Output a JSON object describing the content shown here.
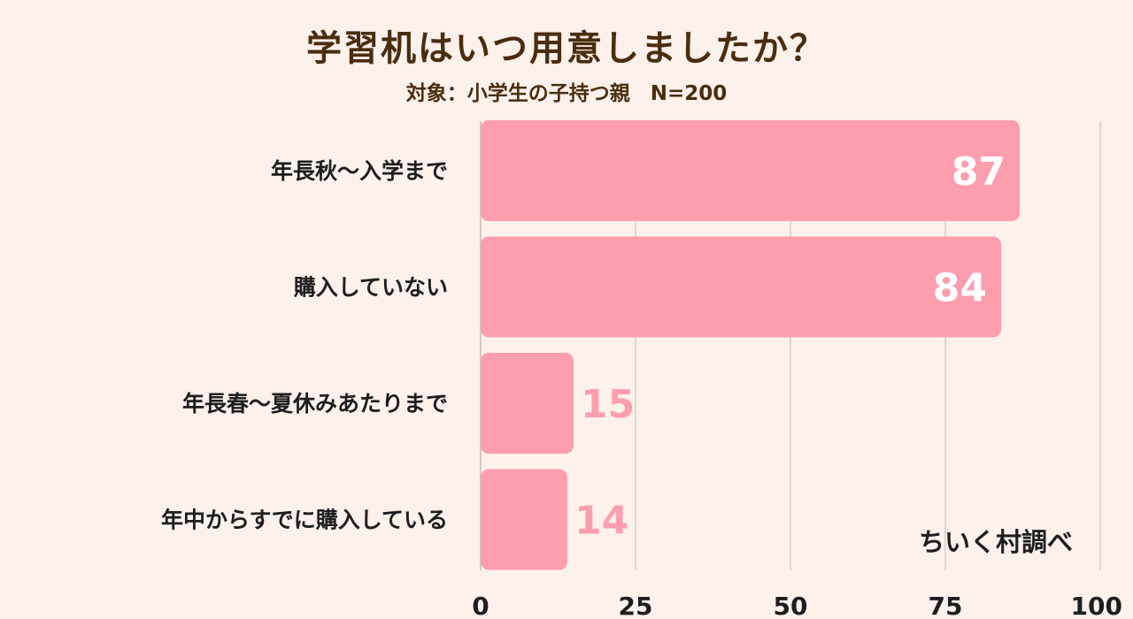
{
  "title": "学習机はいつ用意しましたか？",
  "subtitle": "対象：小学生の子持つ親　N=200",
  "source": "ちいく村調べ",
  "colors": {
    "bar": "#fd9eae",
    "inside_label": "#ffffff",
    "outside_label": "#fd9eae",
    "grid": "#c9bdb8",
    "background": "#fdf1ec"
  },
  "chart_data": {
    "type": "bar",
    "orientation": "horizontal",
    "categories": [
      "年長秋～入学まで",
      "購入していない",
      "年長春～夏休みあたりまで",
      "年中からすでに購入している"
    ],
    "values": [
      87,
      84,
      15,
      14
    ],
    "xlim": [
      0,
      100
    ],
    "xticks": [
      0,
      25,
      50,
      75,
      100
    ],
    "grid": "vertical"
  }
}
